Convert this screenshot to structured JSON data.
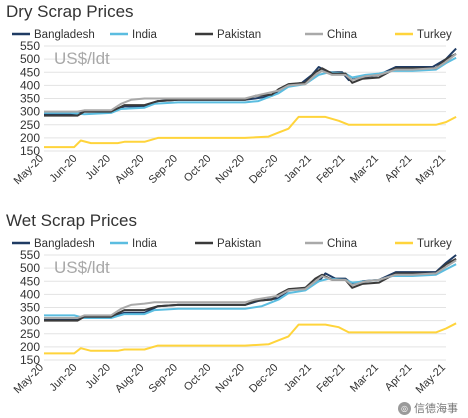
{
  "chart_data": [
    {
      "type": "line",
      "title": "Dry Scrap Prices",
      "unit_label": "US$/ldt",
      "ylim": [
        150,
        550
      ],
      "yticks": [
        150,
        200,
        250,
        300,
        350,
        400,
        450,
        500,
        550
      ],
      "xticks": [
        "May-20",
        "Jun-20",
        "Jul-20",
        "Aug-20",
        "Sep-20",
        "Oct-20",
        "Nov-20",
        "Dec-20",
        "Jan-21",
        "Feb-21",
        "Mar-21",
        "Apr-21",
        "May-21"
      ],
      "legend_position": "top",
      "grid": true,
      "series": [
        {
          "name": "Bangladesh",
          "color": "#1f3b63",
          "points": [
            [
              0,
              290
            ],
            [
              1,
              290
            ],
            [
              1.15,
              300
            ],
            [
              2,
              300
            ],
            [
              2.4,
              320
            ],
            [
              3,
              320
            ],
            [
              3.4,
              340
            ],
            [
              4,
              345
            ],
            [
              6,
              345
            ],
            [
              6.3,
              350
            ],
            [
              6.8,
              360
            ],
            [
              7,
              380
            ],
            [
              7.3,
              400
            ],
            [
              7.7,
              410
            ],
            [
              8,
              440
            ],
            [
              8.2,
              470
            ],
            [
              8.5,
              450
            ],
            [
              8.9,
              450
            ],
            [
              9.1,
              420
            ],
            [
              9.5,
              430
            ],
            [
              10,
              440
            ],
            [
              10.5,
              470
            ],
            [
              11,
              470
            ],
            [
              11.6,
              470
            ],
            [
              12,
              500
            ],
            [
              12.3,
              540
            ]
          ]
        },
        {
          "name": "India",
          "color": "#5bbde0",
          "points": [
            [
              0,
              295
            ],
            [
              0.8,
              295
            ],
            [
              1.2,
              290
            ],
            [
              2,
              295
            ],
            [
              2.3,
              310
            ],
            [
              3,
              315
            ],
            [
              3.3,
              330
            ],
            [
              4,
              335
            ],
            [
              6,
              335
            ],
            [
              6.4,
              340
            ],
            [
              7,
              370
            ],
            [
              7.3,
              395
            ],
            [
              7.8,
              405
            ],
            [
              8.2,
              440
            ],
            [
              8.5,
              450
            ],
            [
              9,
              445
            ],
            [
              9.2,
              430
            ],
            [
              9.6,
              440
            ],
            [
              10,
              445
            ],
            [
              10.4,
              455
            ],
            [
              11,
              455
            ],
            [
              11.7,
              460
            ],
            [
              12,
              485
            ],
            [
              12.3,
              505
            ]
          ]
        },
        {
          "name": "Pakistan",
          "color": "#3a3a3a",
          "points": [
            [
              0,
              285
            ],
            [
              1,
              285
            ],
            [
              1.2,
              300
            ],
            [
              2,
              300
            ],
            [
              2.4,
              325
            ],
            [
              3,
              325
            ],
            [
              3.4,
              340
            ],
            [
              4,
              345
            ],
            [
              6,
              345
            ],
            [
              6.3,
              360
            ],
            [
              6.8,
              365
            ],
            [
              7,
              385
            ],
            [
              7.3,
              405
            ],
            [
              7.8,
              410
            ],
            [
              8.1,
              450
            ],
            [
              8.3,
              465
            ],
            [
              8.6,
              445
            ],
            [
              9,
              445
            ],
            [
              9.2,
              410
            ],
            [
              9.5,
              425
            ],
            [
              10,
              430
            ],
            [
              10.5,
              465
            ],
            [
              11,
              465
            ],
            [
              11.7,
              465
            ],
            [
              12,
              500
            ],
            [
              12.3,
              520
            ]
          ]
        },
        {
          "name": "China",
          "color": "#a9a9a9",
          "points": [
            [
              0,
              300
            ],
            [
              1,
              300
            ],
            [
              1.2,
              305
            ],
            [
              2,
              305
            ],
            [
              2.3,
              330
            ],
            [
              2.6,
              345
            ],
            [
              3,
              350
            ],
            [
              3.3,
              350
            ],
            [
              4,
              350
            ],
            [
              6,
              350
            ],
            [
              6.3,
              360
            ],
            [
              7,
              380
            ],
            [
              7.3,
              400
            ],
            [
              7.8,
              405
            ],
            [
              8.1,
              440
            ],
            [
              8.3,
              455
            ],
            [
              8.6,
              440
            ],
            [
              9,
              440
            ],
            [
              9.2,
              420
            ],
            [
              9.6,
              435
            ],
            [
              10,
              440
            ],
            [
              10.5,
              460
            ],
            [
              11,
              460
            ],
            [
              11.7,
              465
            ],
            [
              12,
              490
            ],
            [
              12.3,
              520
            ]
          ]
        },
        {
          "name": "Turkey",
          "color": "#ffd43b",
          "points": [
            [
              0,
              165
            ],
            [
              0.9,
              165
            ],
            [
              1.1,
              190
            ],
            [
              1.4,
              180
            ],
            [
              2.2,
              180
            ],
            [
              2.4,
              185
            ],
            [
              3,
              185
            ],
            [
              3.4,
              200
            ],
            [
              6,
              200
            ],
            [
              6.7,
              205
            ],
            [
              7,
              220
            ],
            [
              7.3,
              235
            ],
            [
              7.6,
              280
            ],
            [
              8.4,
              280
            ],
            [
              8.8,
              265
            ],
            [
              9.1,
              250
            ],
            [
              10,
              250
            ],
            [
              11,
              250
            ],
            [
              11.7,
              250
            ],
            [
              12,
              260
            ],
            [
              12.3,
              280
            ]
          ]
        }
      ]
    },
    {
      "type": "line",
      "title": "Wet Scrap Prices",
      "unit_label": "US$/ldt",
      "ylim": [
        150,
        550
      ],
      "yticks": [
        150,
        200,
        250,
        300,
        350,
        400,
        450,
        500,
        550
      ],
      "xticks": [
        "May-20",
        "Jun-20",
        "Jul-20",
        "Aug-20",
        "Sep-20",
        "Oct-20",
        "Nov-20",
        "Dec-20",
        "Jan-21",
        "Feb-21",
        "Mar-21",
        "Apr-21",
        "May-21"
      ],
      "legend_position": "top",
      "grid": true,
      "series": [
        {
          "name": "Bangladesh",
          "color": "#1f3b63",
          "points": [
            [
              0,
              305
            ],
            [
              1,
              305
            ],
            [
              1.2,
              315
            ],
            [
              2,
              315
            ],
            [
              2.4,
              330
            ],
            [
              3,
              330
            ],
            [
              3.4,
              355
            ],
            [
              4,
              360
            ],
            [
              6,
              360
            ],
            [
              6.4,
              375
            ],
            [
              7,
              385
            ],
            [
              7.3,
              415
            ],
            [
              7.8,
              425
            ],
            [
              8.2,
              450
            ],
            [
              8.4,
              480
            ],
            [
              8.7,
              460
            ],
            [
              9,
              460
            ],
            [
              9.2,
              440
            ],
            [
              9.5,
              450
            ],
            [
              10,
              455
            ],
            [
              10.5,
              485
            ],
            [
              11,
              485
            ],
            [
              11.7,
              485
            ],
            [
              12,
              520
            ],
            [
              12.3,
              550
            ]
          ]
        },
        {
          "name": "India",
          "color": "#5bbde0",
          "points": [
            [
              0,
              320
            ],
            [
              0.9,
              320
            ],
            [
              1.2,
              310
            ],
            [
              2,
              310
            ],
            [
              2.4,
              325
            ],
            [
              3,
              325
            ],
            [
              3.3,
              340
            ],
            [
              4,
              345
            ],
            [
              6,
              345
            ],
            [
              6.5,
              355
            ],
            [
              7,
              380
            ],
            [
              7.3,
              405
            ],
            [
              7.8,
              415
            ],
            [
              8.2,
              450
            ],
            [
              8.5,
              460
            ],
            [
              9,
              455
            ],
            [
              9.2,
              445
            ],
            [
              9.6,
              450
            ],
            [
              10,
              455
            ],
            [
              10.4,
              470
            ],
            [
              11,
              470
            ],
            [
              11.7,
              475
            ],
            [
              12,
              495
            ],
            [
              12.3,
              515
            ]
          ]
        },
        {
          "name": "Pakistan",
          "color": "#3a3a3a",
          "points": [
            [
              0,
              300
            ],
            [
              1,
              300
            ],
            [
              1.2,
              315
            ],
            [
              2,
              315
            ],
            [
              2.4,
              340
            ],
            [
              3,
              340
            ],
            [
              3.4,
              355
            ],
            [
              4,
              360
            ],
            [
              6,
              360
            ],
            [
              6.3,
              375
            ],
            [
              6.8,
              380
            ],
            [
              7,
              400
            ],
            [
              7.3,
              420
            ],
            [
              7.8,
              425
            ],
            [
              8.1,
              460
            ],
            [
              8.3,
              475
            ],
            [
              8.6,
              455
            ],
            [
              9,
              455
            ],
            [
              9.2,
              425
            ],
            [
              9.5,
              440
            ],
            [
              10,
              445
            ],
            [
              10.5,
              480
            ],
            [
              11,
              480
            ],
            [
              11.7,
              480
            ],
            [
              12,
              515
            ],
            [
              12.3,
              535
            ]
          ]
        },
        {
          "name": "China",
          "color": "#a9a9a9",
          "points": [
            [
              0,
              310
            ],
            [
              1,
              310
            ],
            [
              1.2,
              320
            ],
            [
              2,
              320
            ],
            [
              2.3,
              345
            ],
            [
              2.6,
              360
            ],
            [
              3,
              365
            ],
            [
              3.3,
              370
            ],
            [
              4,
              370
            ],
            [
              6,
              370
            ],
            [
              6.3,
              380
            ],
            [
              7,
              395
            ],
            [
              7.3,
              415
            ],
            [
              7.8,
              420
            ],
            [
              8.1,
              450
            ],
            [
              8.3,
              470
            ],
            [
              8.6,
              455
            ],
            [
              9,
              455
            ],
            [
              9.2,
              435
            ],
            [
              9.6,
              450
            ],
            [
              10,
              455
            ],
            [
              10.5,
              475
            ],
            [
              11,
              475
            ],
            [
              11.7,
              480
            ],
            [
              12,
              505
            ],
            [
              12.3,
              530
            ]
          ]
        },
        {
          "name": "Turkey",
          "color": "#ffd43b",
          "points": [
            [
              0,
              175
            ],
            [
              0.9,
              175
            ],
            [
              1.1,
              195
            ],
            [
              1.4,
              185
            ],
            [
              2.2,
              185
            ],
            [
              2.4,
              190
            ],
            [
              3,
              190
            ],
            [
              3.4,
              205
            ],
            [
              6,
              205
            ],
            [
              6.7,
              210
            ],
            [
              7,
              225
            ],
            [
              7.3,
              240
            ],
            [
              7.6,
              285
            ],
            [
              8.4,
              285
            ],
            [
              8.8,
              275
            ],
            [
              9.1,
              255
            ],
            [
              10,
              255
            ],
            [
              11,
              255
            ],
            [
              11.7,
              255
            ],
            [
              12,
              270
            ],
            [
              12.3,
              290
            ]
          ]
        }
      ]
    }
  ],
  "watermark": {
    "text": "信德海事",
    "icon_glyph": "◎",
    "icon": "wechat-logo-icon"
  }
}
